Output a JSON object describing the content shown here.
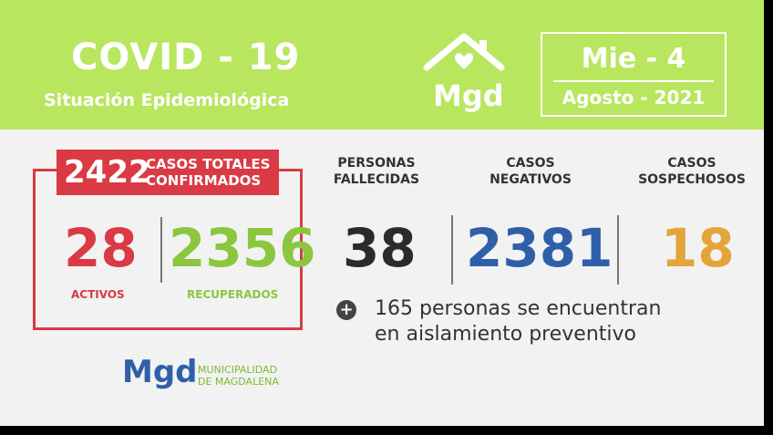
{
  "header": {
    "title": "COVID - 19",
    "subtitle": "Situación Epidemiológica",
    "logo_text": "Mgd",
    "date_day": "Mie - 4",
    "date_month": "Agosto - 2021"
  },
  "totals": {
    "number": "2422",
    "label_line1": "CASOS TOTALES",
    "label_line2": "CONFIRMADOS"
  },
  "activos": {
    "value": "28",
    "label": "ACTIVOS"
  },
  "recuperados": {
    "value": "2356",
    "label": "RECUPERADOS"
  },
  "fallecidas": {
    "head_line1": "PERSONAS",
    "head_line2": "FALLECIDAS",
    "value": "38"
  },
  "negativos": {
    "head_line1": "CASOS",
    "head_line2": "NEGATIVOS",
    "value": "2381"
  },
  "sospechosos": {
    "head_line1": "CASOS",
    "head_line2": "SOSPECHOSOS",
    "value": "18"
  },
  "note": {
    "line1": "165 personas se encuentran",
    "line2": "en aislamiento preventivo"
  },
  "footer": {
    "logo": "Mgd",
    "org_line1": "MUNICIPALIDAD",
    "org_line2": "DE MAGDALENA"
  },
  "colors": {
    "header_green": "#b8e65e",
    "activos_red": "#d93a44",
    "recuperados_green": "#8cc63f",
    "fallecidas_dark": "#2b2b2b",
    "negativos_blue": "#2f5fa8",
    "sospechosos_orange": "#e3a43a"
  }
}
